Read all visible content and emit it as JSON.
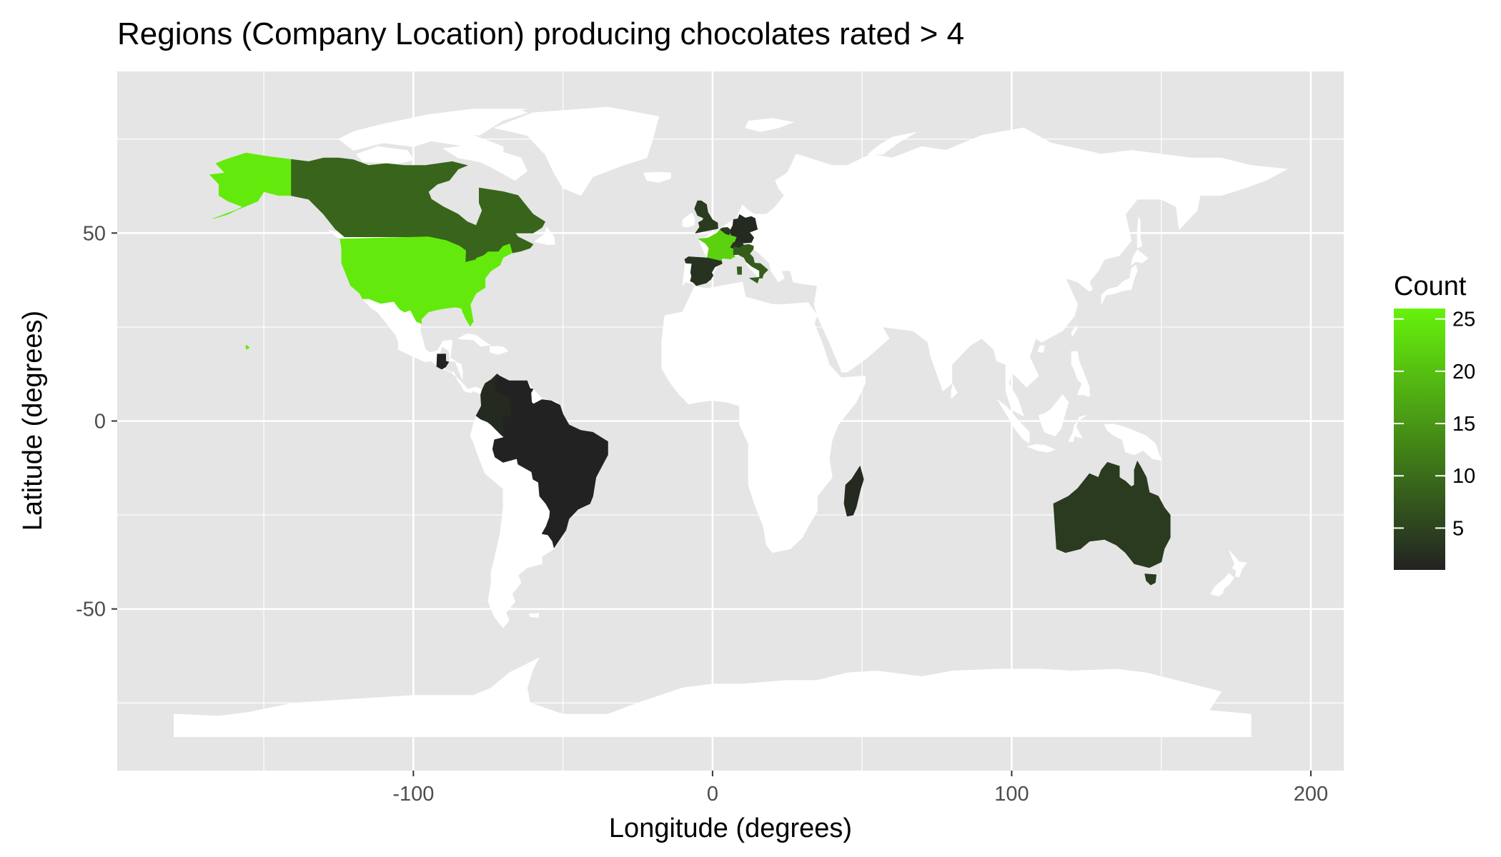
{
  "title": "Regions (Company Location) producing chocolates rated > 4",
  "xlabel": "Longitude (degrees)",
  "ylabel": "Latitude (degrees)",
  "legend_title": "Count",
  "colors": {
    "panel": "#e5e5e5",
    "grid": "#ffffff",
    "land_default": "#ffffff",
    "low": "#222222",
    "high": "#66f20b"
  },
  "chart_data": {
    "type": "map",
    "title": "Regions (Company Location) producing chocolates rated > 4",
    "xlabel": "Longitude (degrees)",
    "ylabel": "Latitude (degrees)",
    "xlim": [
      -199,
      211
    ],
    "ylim": [
      -93,
      93
    ],
    "x_ticks": [
      -100,
      0,
      100,
      200
    ],
    "y_ticks": [
      -50,
      0,
      50
    ],
    "x_tick_labels": [
      "-100",
      "0",
      "100",
      "200"
    ],
    "y_tick_labels": [
      "-50",
      "0",
      "50"
    ],
    "grid": true,
    "legend_position": "right",
    "color_scale": {
      "name": "Count",
      "range": [
        1,
        26
      ],
      "breaks": [
        5,
        10,
        15,
        20,
        25
      ],
      "break_labels": [
        "5",
        "10",
        "15",
        "20",
        "25"
      ]
    },
    "regions": [
      {
        "name": "U.S.A.",
        "count": 25
      },
      {
        "name": "Canada",
        "count": 9
      },
      {
        "name": "France",
        "count": 22
      },
      {
        "name": "Italy",
        "count": 8
      },
      {
        "name": "Spain",
        "count": 3
      },
      {
        "name": "U.K.",
        "count": 4
      },
      {
        "name": "Switzerland",
        "count": 3
      },
      {
        "name": "Germany",
        "count": 2
      },
      {
        "name": "Belgium",
        "count": 4
      },
      {
        "name": "Brazil",
        "count": 1
      },
      {
        "name": "Colombia",
        "count": 2
      },
      {
        "name": "Venezuela",
        "count": 1
      },
      {
        "name": "Guatemala",
        "count": 1
      },
      {
        "name": "Madagascar",
        "count": 2
      },
      {
        "name": "Australia",
        "count": 4
      }
    ]
  }
}
